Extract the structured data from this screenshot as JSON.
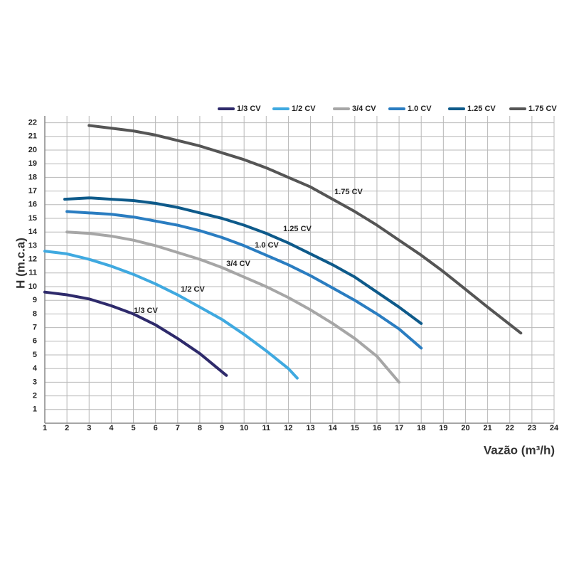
{
  "chart_data": {
    "type": "line",
    "x_label": "Vazão (m³/h)",
    "y_label": "H (m.c.a)",
    "xlim": [
      1,
      24
    ],
    "xticks": [
      1,
      2,
      3,
      4,
      5,
      6,
      7,
      8,
      9,
      10,
      11,
      12,
      13,
      14,
      15,
      16,
      17,
      18,
      19,
      20,
      21,
      22,
      23,
      24
    ],
    "ylim": [
      0,
      22.5
    ],
    "yticks": [
      1,
      2,
      3,
      4,
      5,
      6,
      7,
      8,
      9,
      10,
      11,
      12,
      13,
      14,
      15,
      16,
      17,
      18,
      19,
      20,
      21,
      22
    ],
    "grid": true,
    "legend": "top",
    "series": [
      {
        "name": "1/3 CV",
        "color": "#2e2a6b",
        "x": [
          1,
          2,
          3,
          4,
          5,
          6,
          7,
          8,
          9.2
        ],
        "values": [
          9.6,
          9.4,
          9.1,
          8.6,
          8.0,
          7.2,
          6.2,
          5.1,
          3.5
        ]
      },
      {
        "name": "1/2 CV",
        "color": "#3fa9e0",
        "x": [
          1,
          2,
          3,
          4,
          5,
          6,
          7,
          8,
          9,
          10,
          11,
          12,
          12.4
        ],
        "values": [
          12.6,
          12.4,
          12.0,
          11.5,
          10.9,
          10.2,
          9.4,
          8.5,
          7.6,
          6.5,
          5.3,
          4.0,
          3.3
        ]
      },
      {
        "name": "3/4 CV",
        "color": "#a6a6a6",
        "x": [
          2,
          3,
          4,
          5,
          6,
          7,
          8,
          9,
          10,
          11,
          12,
          13,
          14,
          15,
          16,
          17
        ],
        "values": [
          14.0,
          13.9,
          13.7,
          13.4,
          13.0,
          12.5,
          12.0,
          11.4,
          10.7,
          10.0,
          9.2,
          8.3,
          7.3,
          6.2,
          4.9,
          3.0
        ]
      },
      {
        "name": "1.0 CV",
        "color": "#2a7dc1",
        "x": [
          2,
          3,
          4,
          5,
          6,
          7,
          8,
          9,
          10,
          11,
          12,
          13,
          14,
          15,
          16,
          17,
          18
        ],
        "values": [
          15.5,
          15.4,
          15.3,
          15.1,
          14.8,
          14.5,
          14.1,
          13.6,
          13.0,
          12.3,
          11.6,
          10.8,
          9.9,
          9.0,
          8.0,
          6.9,
          5.5
        ]
      },
      {
        "name": "1.25 CV",
        "color": "#0e5a8a",
        "x": [
          1.9,
          3,
          4,
          5,
          6,
          7,
          8,
          9,
          10,
          11,
          12,
          13,
          14,
          15,
          16,
          17,
          18
        ],
        "values": [
          16.4,
          16.5,
          16.4,
          16.3,
          16.1,
          15.8,
          15.4,
          15.0,
          14.5,
          13.9,
          13.2,
          12.4,
          11.6,
          10.7,
          9.6,
          8.5,
          7.3
        ]
      },
      {
        "name": "1.75 CV",
        "color": "#555555",
        "x": [
          3,
          4,
          5,
          6,
          7,
          8,
          9,
          10,
          11,
          12,
          13,
          14,
          15,
          16,
          17,
          18,
          19,
          20,
          21,
          22.5
        ],
        "values": [
          21.8,
          21.6,
          21.4,
          21.1,
          20.7,
          20.3,
          19.8,
          19.3,
          18.7,
          18.0,
          17.3,
          16.4,
          15.5,
          14.5,
          13.4,
          12.3,
          11.1,
          9.8,
          8.5,
          6.6
        ]
      }
    ]
  }
}
